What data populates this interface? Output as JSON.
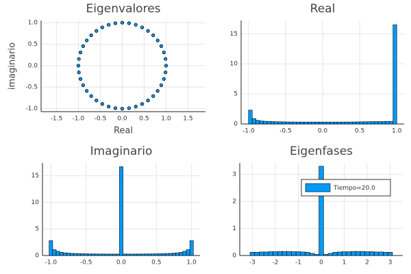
{
  "chart_data": [
    {
      "type": "scatter",
      "title": "Eigenvalores",
      "xlabel": "Real",
      "ylabel": "imaginario",
      "color": "#009af9",
      "grid": true,
      "xlim": [
        -1.85,
        1.9
      ],
      "ylim": [
        -1.07,
        1.05
      ],
      "xticks": [
        {
          "value": -1.5,
          "label": "-1.5"
        },
        {
          "value": -1,
          "label": "-1.0"
        },
        {
          "value": -0.5,
          "label": "-0.5"
        },
        {
          "value": 0,
          "label": "0.0"
        },
        {
          "value": 0.5,
          "label": "0.5"
        },
        {
          "value": 1,
          "label": "1.0"
        },
        {
          "value": 1.5,
          "label": "1.5"
        }
      ],
      "yticks": [
        {
          "value": -1,
          "label": "-1.0"
        },
        {
          "value": -0.5,
          "label": "-0.5"
        },
        {
          "value": 0,
          "label": "0.0"
        },
        {
          "value": 0.5,
          "label": "0.5"
        },
        {
          "value": 1,
          "label": "1.0"
        }
      ],
      "x": [
        1,
        0.988,
        0.951,
        0.891,
        0.809,
        0.707,
        0.588,
        0.454,
        0.309,
        0.156,
        0,
        -0.156,
        -0.309,
        -0.454,
        -0.588,
        -0.707,
        -0.809,
        -0.891,
        -0.951,
        -0.988,
        -1,
        -0.988,
        -0.951,
        -0.891,
        -0.809,
        -0.707,
        -0.588,
        -0.454,
        -0.309,
        -0.156,
        0,
        0.156,
        0.309,
        0.454,
        0.588,
        0.707,
        0.809,
        0.891,
        0.951,
        0.988
      ],
      "y": [
        0,
        0.156,
        0.309,
        0.454,
        0.588,
        0.707,
        0.809,
        0.891,
        0.951,
        0.988,
        1,
        0.988,
        0.951,
        0.891,
        0.809,
        0.707,
        0.588,
        0.454,
        0.309,
        0.156,
        0,
        -0.156,
        -0.309,
        -0.454,
        -0.588,
        -0.707,
        -0.809,
        -0.891,
        -0.951,
        -0.988,
        -1,
        -0.988,
        -0.951,
        -0.891,
        -0.809,
        -0.707,
        -0.588,
        -0.454,
        -0.309,
        -0.156
      ]
    },
    {
      "type": "histogram",
      "title": "Real",
      "color": "#009af9",
      "grid": true,
      "xlim": [
        -1.1,
        1.1
      ],
      "ylim": [
        0,
        17.2
      ],
      "xticks": [
        {
          "value": -1,
          "label": "-1.0"
        },
        {
          "value": -0.5,
          "label": "-0.5"
        },
        {
          "value": 0,
          "label": "0.0"
        },
        {
          "value": 0.5,
          "label": "0.5"
        },
        {
          "value": 1,
          "label": "1.0"
        }
      ],
      "yticks": [
        0,
        5,
        10,
        15
      ],
      "bins": [
        -1,
        -0.95,
        -0.9,
        -0.85,
        -0.8,
        -0.75,
        -0.7,
        -0.65,
        -0.6,
        -0.55,
        -0.5,
        -0.45,
        -0.4,
        -0.35,
        -0.3,
        -0.25,
        -0.2,
        -0.15,
        -0.1,
        -0.05,
        0,
        0.05,
        0.1,
        0.15,
        0.2,
        0.25,
        0.3,
        0.35,
        0.4,
        0.45,
        0.5,
        0.55,
        0.6,
        0.65,
        0.7,
        0.75,
        0.8,
        0.85,
        0.9,
        0.95,
        1
      ],
      "values": [
        2.3,
        0.9,
        0.6,
        0.5,
        0.45,
        0.42,
        0.4,
        0.38,
        0.36,
        0.35,
        0.34,
        0.33,
        0.33,
        0.32,
        0.32,
        0.32,
        0.32,
        0.32,
        0.32,
        0.32,
        0.32,
        0.32,
        0.32,
        0.32,
        0.32,
        0.32,
        0.33,
        0.33,
        0.34,
        0.35,
        0.36,
        0.37,
        0.38,
        0.39,
        0.4,
        0.4,
        0.41,
        0.42,
        0.43,
        16.5
      ]
    },
    {
      "type": "histogram",
      "title": "Imaginario",
      "color": "#009af9",
      "grid": true,
      "xlim": [
        -1.12,
        1.12
      ],
      "ylim": [
        0,
        17.4
      ],
      "xticks": [
        {
          "value": -1,
          "label": "-1.0"
        },
        {
          "value": -0.5,
          "label": "-0.5"
        },
        {
          "value": 0,
          "label": "0.0"
        },
        {
          "value": 0.5,
          "label": "0.5"
        },
        {
          "value": 1,
          "label": "1.0"
        }
      ],
      "yticks": [
        0,
        5,
        10,
        15
      ],
      "bins": [
        -1.025,
        -0.975,
        -0.925,
        -0.875,
        -0.825,
        -0.775,
        -0.725,
        -0.675,
        -0.625,
        -0.575,
        -0.525,
        -0.475,
        -0.425,
        -0.375,
        -0.325,
        -0.275,
        -0.225,
        -0.175,
        -0.125,
        -0.075,
        -0.025,
        0.025,
        0.075,
        0.125,
        0.175,
        0.225,
        0.275,
        0.325,
        0.375,
        0.425,
        0.475,
        0.525,
        0.575,
        0.625,
        0.675,
        0.725,
        0.775,
        0.825,
        0.875,
        0.925,
        0.975,
        1.025
      ],
      "values": [
        2.8,
        1.1,
        0.8,
        0.6,
        0.5,
        0.45,
        0.4,
        0.38,
        0.35,
        0.33,
        0.32,
        0.3,
        0.3,
        0.29,
        0.28,
        0.28,
        0.27,
        0.27,
        0.27,
        0.27,
        16.7,
        0.27,
        0.27,
        0.27,
        0.27,
        0.28,
        0.28,
        0.29,
        0.3,
        0.3,
        0.32,
        0.33,
        0.35,
        0.38,
        0.4,
        0.45,
        0.5,
        0.6,
        0.8,
        1.1,
        2.8
      ]
    },
    {
      "type": "histogram",
      "title": "Eigenfases",
      "grid": true,
      "legend": "top-right",
      "xlim": [
        -3.55,
        3.55
      ],
      "ylim": [
        0,
        3.42
      ],
      "xticks": [
        -3,
        -2,
        -1,
        0,
        1,
        2,
        3
      ],
      "yticks": [
        0,
        1,
        2,
        3
      ],
      "bins": [
        -3.1,
        -2.9,
        -2.7,
        -2.5,
        -2.3,
        -2.1,
        -1.9,
        -1.7,
        -1.5,
        -1.3,
        -1.1,
        -0.9,
        -0.7,
        -0.5,
        -0.3,
        -0.1,
        0.1,
        0.3,
        0.5,
        0.7,
        0.9,
        1.1,
        1.3,
        1.5,
        1.7,
        1.9,
        2.1,
        2.3,
        2.5,
        2.7,
        2.9,
        3.1
      ],
      "series": [
        {
          "name": "Tiempo=20.0",
          "color": "#009af9",
          "values": [
            0.12,
            0.12,
            0.13,
            0.13,
            0.14,
            0.14,
            0.15,
            0.15,
            0.15,
            0.14,
            0.14,
            0.13,
            0.12,
            0.08,
            0.04,
            3.3,
            0.04,
            0.08,
            0.12,
            0.13,
            0.14,
            0.14,
            0.15,
            0.15,
            0.15,
            0.14,
            0.14,
            0.13,
            0.13,
            0.12,
            0.12
          ]
        }
      ]
    }
  ]
}
